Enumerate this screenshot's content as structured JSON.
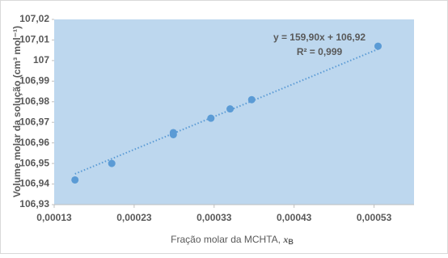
{
  "chart_data": {
    "type": "scatter",
    "x": [
      0.000156,
      0.000202,
      0.000279,
      0.000279,
      0.000326,
      0.00035,
      0.000377,
      0.000535
    ],
    "series": [
      {
        "color": "#5b9bd5",
        "values": [
          106.942,
          106.95,
          106.965,
          106.964,
          106.972,
          106.9765,
          106.981,
          107.007
        ]
      }
    ],
    "trendline": {
      "slope": 159.9,
      "intercept": 106.92,
      "color": "#5b9bd5"
    },
    "annotations": [
      "y = 159,90x + 106,92",
      "R² = 0,999"
    ],
    "xlabel": {
      "text": "Fração molar da MCHTA, ",
      "var": "x",
      "sub": "B"
    },
    "ylabel": "Volume molar da solução (cm³ mol⁻¹)",
    "xlim": [
      0.00013,
      0.00058
    ],
    "xticks": [
      {
        "value": 0.00013,
        "label": "0,00013"
      },
      {
        "value": 0.00023,
        "label": "0,00023"
      },
      {
        "value": 0.00033,
        "label": "0,00033"
      },
      {
        "value": 0.00043,
        "label": "0,00043"
      },
      {
        "value": 0.00053,
        "label": "0,00053"
      }
    ],
    "ylim": [
      106.93,
      107.02
    ],
    "yticks": [
      {
        "value": 106.93,
        "label": "106,93"
      },
      {
        "value": 106.94,
        "label": "106,94"
      },
      {
        "value": 106.95,
        "label": "106,95"
      },
      {
        "value": 106.96,
        "label": "106,96"
      },
      {
        "value": 106.97,
        "label": "106,97"
      },
      {
        "value": 106.98,
        "label": "106,98"
      },
      {
        "value": 106.99,
        "label": "106,99"
      },
      {
        "value": 107,
        "label": "107"
      },
      {
        "value": 107.01,
        "label": "107,01"
      },
      {
        "value": 107.02,
        "label": "107,02"
      }
    ],
    "plot_background": "#bdd7ee"
  }
}
